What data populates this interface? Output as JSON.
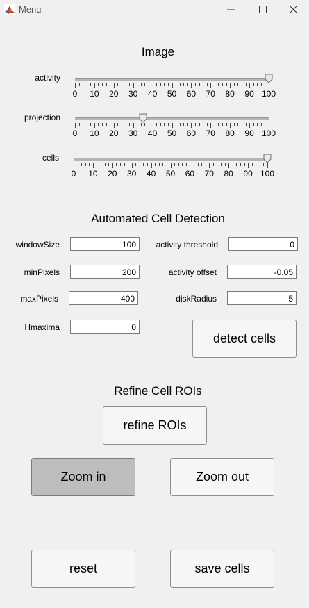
{
  "window": {
    "title": "Menu",
    "minimize_icon": "minimize-icon",
    "maximize_icon": "maximize-icon",
    "close_icon": "close-icon"
  },
  "image_section": {
    "title": "Image",
    "sliders": [
      {
        "label": "activity",
        "value": 100
      },
      {
        "label": "projection",
        "value": 35
      },
      {
        "label": "cells",
        "value": 100
      }
    ],
    "tick_labels": [
      "0",
      "10",
      "20",
      "30",
      "40",
      "50",
      "60",
      "70",
      "80",
      "90",
      "100"
    ]
  },
  "detection_section": {
    "title": "Automated Cell Detection",
    "fields": {
      "windowSize": {
        "label": "windowSize",
        "value": "100"
      },
      "minPixels": {
        "label": "minPixels",
        "value": "200"
      },
      "maxPixels": {
        "label": "maxPixels",
        "value": "400"
      },
      "Hmaxima": {
        "label": "Hmaxima",
        "value": "0"
      },
      "activity_threshold": {
        "label": "activity threshold",
        "value": "0"
      },
      "activity_offset": {
        "label": "activity offset",
        "value": "-0.05"
      },
      "diskRadius": {
        "label": "diskRadius",
        "value": "5"
      }
    },
    "detect_button": "detect cells"
  },
  "refine_section": {
    "title": "Refine Cell ROIs",
    "refine_button": "refine ROIs",
    "zoom_in_button": "Zoom in",
    "zoom_out_button": "Zoom out"
  },
  "bottom": {
    "reset_button": "reset",
    "save_button": "save cells"
  },
  "colors": {
    "background": "#f0f0f0",
    "pressed_button": "#bdbdbd"
  }
}
